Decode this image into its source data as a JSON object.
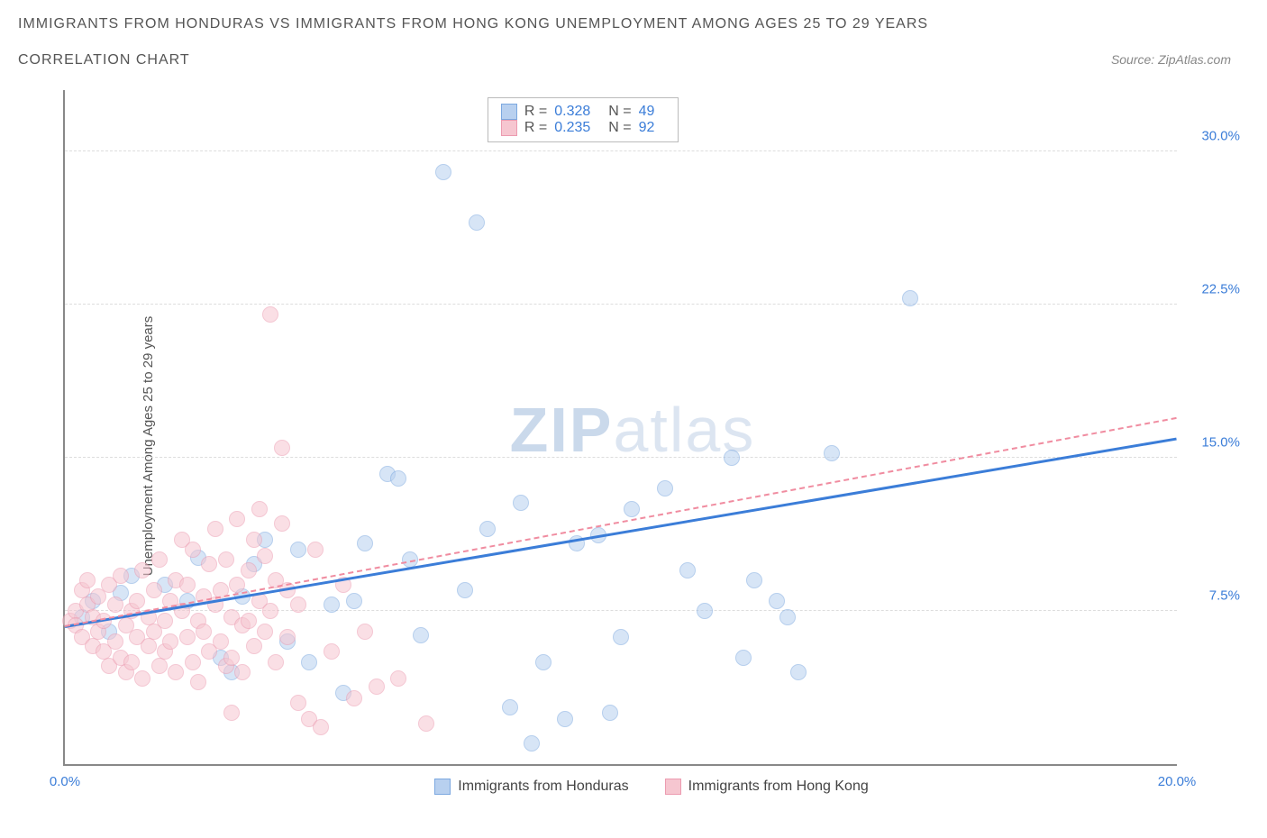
{
  "title": "IMMIGRANTS FROM HONDURAS VS IMMIGRANTS FROM HONG KONG UNEMPLOYMENT AMONG AGES 25 TO 29 YEARS",
  "subtitle": "CORRELATION CHART",
  "source": "Source: ZipAtlas.com",
  "y_axis_label": "Unemployment Among Ages 25 to 29 years",
  "watermark_a": "ZIP",
  "watermark_b": "atlas",
  "chart": {
    "type": "scatter",
    "xlim": [
      0,
      20
    ],
    "ylim": [
      0,
      33
    ],
    "x_ticks": [
      {
        "pos": 0,
        "label": "0.0%"
      },
      {
        "pos": 20,
        "label": "20.0%"
      }
    ],
    "y_ticks": [
      {
        "pos": 7.5,
        "label": "7.5%"
      },
      {
        "pos": 15.0,
        "label": "15.0%"
      },
      {
        "pos": 22.5,
        "label": "22.5%"
      },
      {
        "pos": 30.0,
        "label": "30.0%"
      }
    ],
    "grid_color": "#dddddd",
    "background_color": "#ffffff",
    "series": [
      {
        "name": "Immigrants from Honduras",
        "color_fill": "#b8d0ef",
        "color_border": "#7ca8e0",
        "marker_radius": 9,
        "R": "0.328",
        "N": "49",
        "trend": {
          "x1": 0,
          "y1": 6.8,
          "x2": 20,
          "y2": 16.0,
          "style": "solid",
          "color": "#3b7dd8",
          "width": 3
        },
        "points": [
          [
            0.3,
            7.2
          ],
          [
            0.5,
            8.0
          ],
          [
            0.8,
            6.5
          ],
          [
            1.0,
            8.4
          ],
          [
            1.2,
            9.2
          ],
          [
            1.8,
            8.8
          ],
          [
            2.2,
            8.0
          ],
          [
            2.4,
            10.1
          ],
          [
            2.8,
            5.2
          ],
          [
            3.0,
            4.5
          ],
          [
            3.2,
            8.2
          ],
          [
            3.4,
            9.8
          ],
          [
            3.6,
            11.0
          ],
          [
            4.0,
            6.0
          ],
          [
            4.2,
            10.5
          ],
          [
            4.4,
            5.0
          ],
          [
            5.0,
            3.5
          ],
          [
            5.2,
            8.0
          ],
          [
            5.4,
            10.8
          ],
          [
            5.8,
            14.2
          ],
          [
            6.2,
            10.0
          ],
          [
            6.4,
            6.3
          ],
          [
            6.8,
            29.0
          ],
          [
            7.2,
            8.5
          ],
          [
            7.4,
            26.5
          ],
          [
            7.6,
            11.5
          ],
          [
            8.0,
            2.8
          ],
          [
            8.2,
            12.8
          ],
          [
            8.4,
            1.0
          ],
          [
            8.6,
            5.0
          ],
          [
            9.0,
            2.2
          ],
          [
            9.2,
            10.8
          ],
          [
            9.6,
            11.2
          ],
          [
            9.8,
            2.5
          ],
          [
            10.2,
            12.5
          ],
          [
            10.8,
            13.5
          ],
          [
            11.2,
            9.5
          ],
          [
            11.5,
            7.5
          ],
          [
            12.0,
            15.0
          ],
          [
            12.2,
            5.2
          ],
          [
            12.4,
            9.0
          ],
          [
            12.8,
            8.0
          ],
          [
            13.0,
            7.2
          ],
          [
            13.2,
            4.5
          ],
          [
            13.8,
            15.2
          ],
          [
            15.2,
            22.8
          ],
          [
            10.0,
            6.2
          ],
          [
            6.0,
            14.0
          ],
          [
            4.8,
            7.8
          ]
        ]
      },
      {
        "name": "Immigrants from Hong Kong",
        "color_fill": "#f6c6d0",
        "color_border": "#ec9bb0",
        "marker_radius": 9,
        "R": "0.235",
        "N": "92",
        "trend": {
          "x1": 0,
          "y1": 6.8,
          "x2": 20,
          "y2": 17.0,
          "style": "dashed",
          "color": "#f08ca0",
          "width": 2
        },
        "points": [
          [
            0.1,
            7.0
          ],
          [
            0.2,
            7.5
          ],
          [
            0.2,
            6.8
          ],
          [
            0.3,
            8.5
          ],
          [
            0.3,
            6.2
          ],
          [
            0.4,
            7.8
          ],
          [
            0.4,
            9.0
          ],
          [
            0.5,
            7.2
          ],
          [
            0.5,
            5.8
          ],
          [
            0.6,
            6.5
          ],
          [
            0.6,
            8.2
          ],
          [
            0.7,
            5.5
          ],
          [
            0.7,
            7.0
          ],
          [
            0.8,
            4.8
          ],
          [
            0.8,
            8.8
          ],
          [
            0.9,
            6.0
          ],
          [
            0.9,
            7.8
          ],
          [
            1.0,
            5.2
          ],
          [
            1.0,
            9.2
          ],
          [
            1.1,
            6.8
          ],
          [
            1.1,
            4.5
          ],
          [
            1.2,
            7.5
          ],
          [
            1.2,
            5.0
          ],
          [
            1.3,
            8.0
          ],
          [
            1.3,
            6.2
          ],
          [
            1.4,
            9.5
          ],
          [
            1.4,
            4.2
          ],
          [
            1.5,
            7.2
          ],
          [
            1.5,
            5.8
          ],
          [
            1.6,
            8.5
          ],
          [
            1.6,
            6.5
          ],
          [
            1.7,
            4.8
          ],
          [
            1.7,
            10.0
          ],
          [
            1.8,
            7.0
          ],
          [
            1.8,
            5.5
          ],
          [
            1.9,
            8.0
          ],
          [
            1.9,
            6.0
          ],
          [
            2.0,
            9.0
          ],
          [
            2.0,
            4.5
          ],
          [
            2.1,
            7.5
          ],
          [
            2.1,
            11.0
          ],
          [
            2.2,
            6.2
          ],
          [
            2.2,
            8.8
          ],
          [
            2.3,
            5.0
          ],
          [
            2.3,
            10.5
          ],
          [
            2.4,
            7.0
          ],
          [
            2.4,
            4.0
          ],
          [
            2.5,
            8.2
          ],
          [
            2.5,
            6.5
          ],
          [
            2.6,
            9.8
          ],
          [
            2.6,
            5.5
          ],
          [
            2.7,
            7.8
          ],
          [
            2.7,
            11.5
          ],
          [
            2.8,
            6.0
          ],
          [
            2.8,
            8.5
          ],
          [
            2.9,
            4.8
          ],
          [
            2.9,
            10.0
          ],
          [
            3.0,
            7.2
          ],
          [
            3.0,
            5.2
          ],
          [
            3.1,
            12.0
          ],
          [
            3.1,
            8.8
          ],
          [
            3.2,
            6.8
          ],
          [
            3.2,
            4.5
          ],
          [
            3.3,
            9.5
          ],
          [
            3.3,
            7.0
          ],
          [
            3.4,
            11.0
          ],
          [
            3.4,
            5.8
          ],
          [
            3.5,
            8.0
          ],
          [
            3.5,
            12.5
          ],
          [
            3.6,
            6.5
          ],
          [
            3.6,
            10.2
          ],
          [
            3.7,
            22.0
          ],
          [
            3.7,
            7.5
          ],
          [
            3.8,
            5.0
          ],
          [
            3.8,
            9.0
          ],
          [
            3.9,
            11.8
          ],
          [
            3.9,
            15.5
          ],
          [
            4.0,
            6.2
          ],
          [
            4.0,
            8.5
          ],
          [
            4.2,
            3.0
          ],
          [
            4.2,
            7.8
          ],
          [
            4.4,
            2.2
          ],
          [
            4.5,
            10.5
          ],
          [
            4.8,
            5.5
          ],
          [
            5.0,
            8.8
          ],
          [
            5.2,
            3.2
          ],
          [
            5.4,
            6.5
          ],
          [
            5.6,
            3.8
          ],
          [
            6.0,
            4.2
          ],
          [
            6.5,
            2.0
          ],
          [
            4.6,
            1.8
          ],
          [
            3.0,
            2.5
          ]
        ]
      }
    ]
  }
}
